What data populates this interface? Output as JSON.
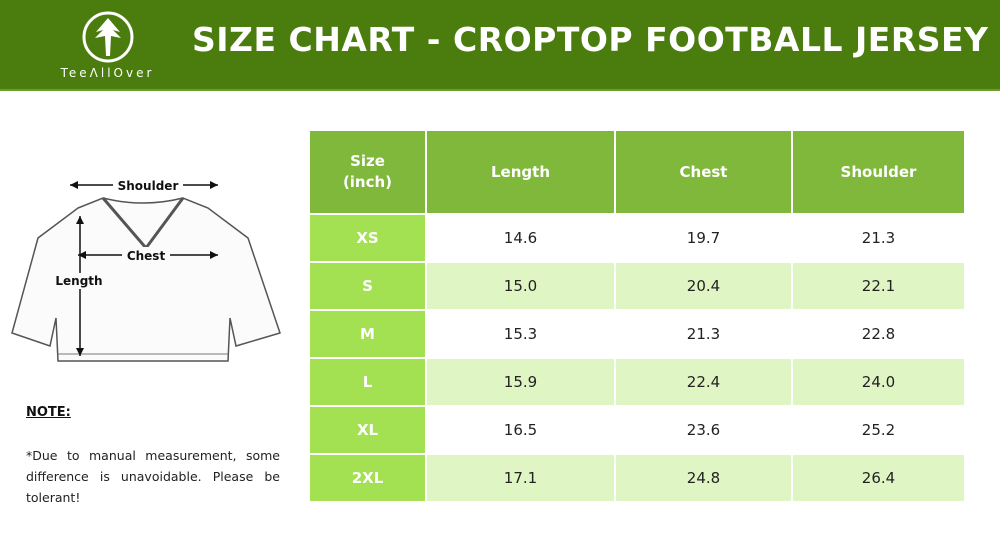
{
  "brand": {
    "name": "TeeAllOver",
    "logo_text": "TeeΛllOver"
  },
  "title": "SIZE CHART - CROPTOP FOOTBALL JERSEY",
  "diagram": {
    "shoulder": "Shoulder",
    "chest": "Chest",
    "length": "Length"
  },
  "note": {
    "heading": "NOTE:",
    "text": "*Due to manual measurement, some difference is unavoidable. Please be tolerant!"
  },
  "colors": {
    "header": "#4a7c0e",
    "table_header": "#80b83b",
    "size_cell": "#a3e052",
    "alt_row": "#dff5c4"
  },
  "table": {
    "headers": [
      "Size (inch)",
      "Length",
      "Chest",
      "Shoulder"
    ],
    "rows": [
      [
        "XS",
        "14.6",
        "19.7",
        "21.3"
      ],
      [
        "S",
        "15.0",
        "20.4",
        "22.1"
      ],
      [
        "M",
        "15.3",
        "21.3",
        "22.8"
      ],
      [
        "L",
        "15.9",
        "22.4",
        "24.0"
      ],
      [
        "XL",
        "16.5",
        "23.6",
        "25.2"
      ],
      [
        "2XL",
        "17.1",
        "24.8",
        "26.4"
      ]
    ]
  }
}
